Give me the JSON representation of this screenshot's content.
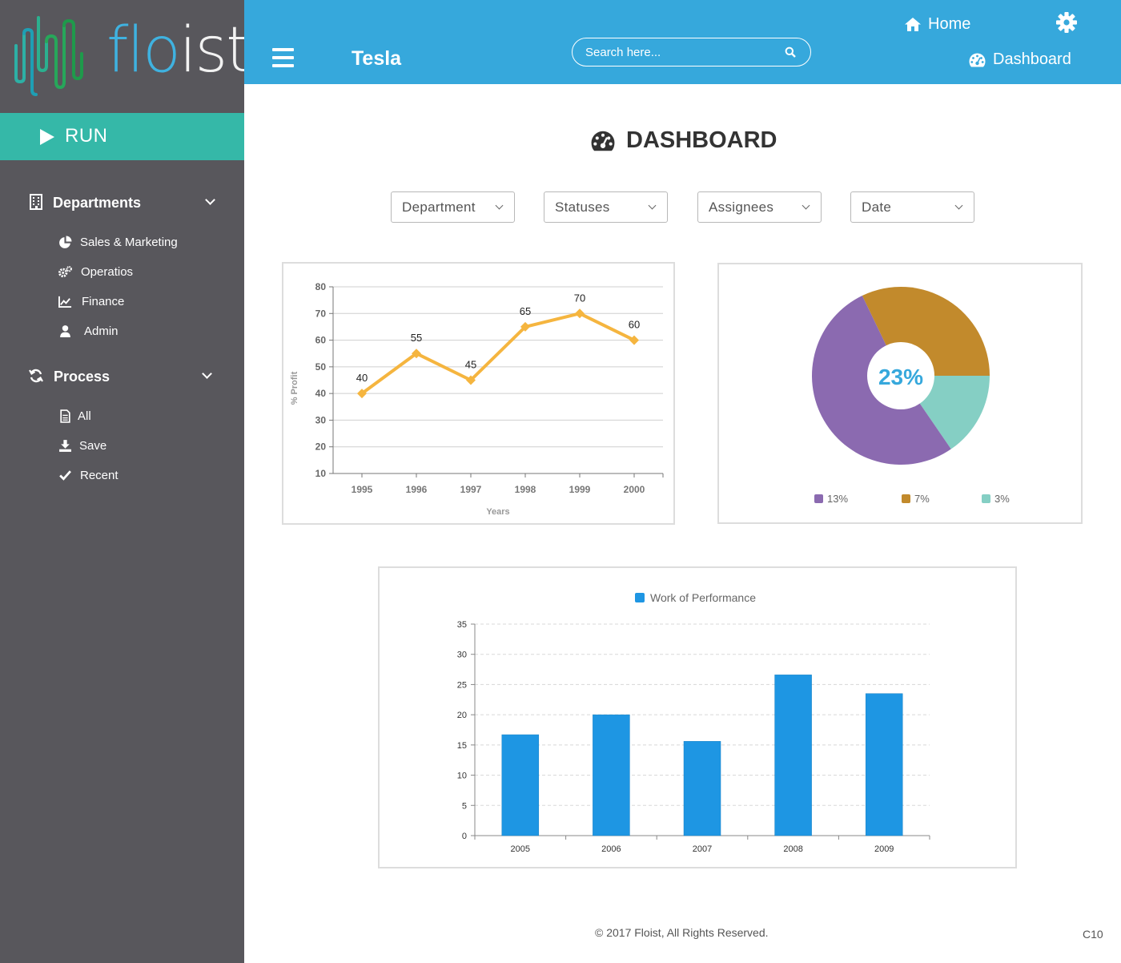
{
  "brand": {
    "logo_prefix": "flo",
    "logo_suffix": "ist"
  },
  "sidebar": {
    "run_label": "RUN",
    "sections": [
      {
        "label": "Departments",
        "items": [
          {
            "label": "Sales & Marketing",
            "icon": "pie-chart-icon"
          },
          {
            "label": "Operatios",
            "icon": "cogs-icon"
          },
          {
            "label": "Finance",
            "icon": "line-chart-icon"
          },
          {
            "label": "Admin",
            "icon": "user-icon"
          }
        ]
      },
      {
        "label": "Process",
        "items": [
          {
            "label": "All",
            "icon": "file-icon"
          },
          {
            "label": "Save",
            "icon": "download-icon"
          },
          {
            "label": "Recent",
            "icon": "check-icon"
          }
        ]
      }
    ]
  },
  "header": {
    "company": "Tesla",
    "search_placeholder": "Search here...",
    "home_label": "Home",
    "dashboard_label": "Dashboard"
  },
  "main": {
    "title": "DASHBOARD",
    "filters": [
      "Department",
      "Statuses",
      "Assignees",
      "Date"
    ]
  },
  "colors": {
    "header": "#36a8dc",
    "sidebar": "#58575c",
    "run": "#35b8a8",
    "line": "#f5b53f",
    "bar": "#1e96e3",
    "pie": [
      "#8b6ab0",
      "#c28a2c",
      "#85cfc4"
    ]
  },
  "chart_data": [
    {
      "type": "line",
      "x": [
        "1995",
        "1996",
        "1997",
        "1998",
        "1999",
        "2000"
      ],
      "values": [
        40,
        55,
        45,
        65,
        70,
        60
      ],
      "xlabel": "Years",
      "ylabel": "% Profit",
      "ylim": [
        10,
        80
      ],
      "yticks": [
        10,
        20,
        30,
        40,
        50,
        60,
        70,
        80
      ],
      "grid": true
    },
    {
      "type": "pie",
      "center_label": "23%",
      "slices": [
        {
          "label": "13%",
          "value": 13
        },
        {
          "label": "7%",
          "value": 7
        },
        {
          "label": "3%",
          "value": 3
        }
      ],
      "legend": "bottom"
    },
    {
      "type": "bar",
      "categories": [
        "2005",
        "2006",
        "2007",
        "2008",
        "2009"
      ],
      "series": [
        {
          "name": "Work of Performance",
          "values": [
            16.7,
            20,
            15.6,
            26.6,
            23.5
          ]
        }
      ],
      "ylim": [
        0,
        35
      ],
      "yticks": [
        0,
        5,
        10,
        15,
        20,
        25,
        30,
        35
      ],
      "legend": "top",
      "grid": true
    }
  ],
  "footer": {
    "copyright": "© 2017 Floist, All Rights Reserved.",
    "version": "C10"
  }
}
